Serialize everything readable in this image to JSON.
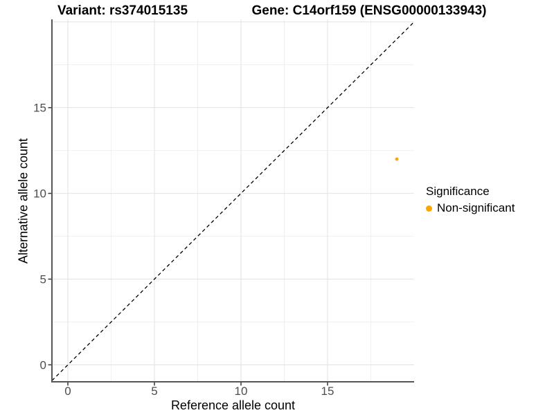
{
  "titles": {
    "variant": "Variant: rs374015135",
    "gene": "Gene: C14orf159 (ENSG00000133943)"
  },
  "chart_data": {
    "type": "scatter",
    "xlabel": "Reference allele count",
    "ylabel": "Alternative allele count",
    "xlim": [
      -0.92,
      20.0
    ],
    "ylim": [
      -0.99,
      20.15
    ],
    "x_ticks": [
      0,
      5,
      10,
      15
    ],
    "y_ticks": [
      0,
      5,
      10,
      15
    ],
    "grid": {
      "x_major": [
        0,
        5,
        10,
        15
      ],
      "x_minor": [
        2.5,
        7.5,
        12.5,
        17.5
      ],
      "y_major": [
        0,
        5,
        10,
        15,
        20
      ],
      "y_minor": [
        2.5,
        7.5,
        12.5,
        17.5
      ]
    },
    "abline": {
      "slope": 1,
      "intercept": 0,
      "style": "dashed"
    },
    "series": [
      {
        "name": "Non-significant",
        "color": "#FFA500",
        "points": [
          {
            "x": 19,
            "y": 12
          }
        ]
      }
    ],
    "legend": {
      "title": "Significance",
      "position": "right",
      "items": [
        {
          "label": "Non-significant",
          "color": "#FFA500"
        }
      ]
    },
    "colors": {
      "background": "#FFFFFF",
      "grid_major": "#E2E2E2",
      "grid_minor": "#F0F0F0",
      "axis_line": "#555555",
      "tick_mark": "#333333",
      "tick_text": "#4D4D4D",
      "abline": "#000000"
    }
  }
}
